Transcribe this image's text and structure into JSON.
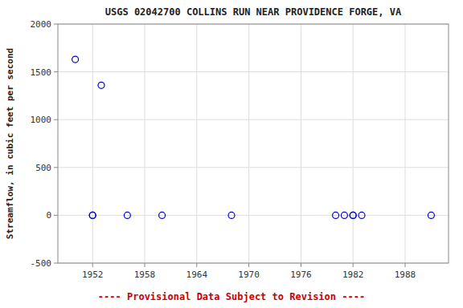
{
  "chart_data": {
    "type": "scatter",
    "title": "USGS 02042700 COLLINS RUN NEAR PROVIDENCE FORGE, VA",
    "ylabel": "Streamflow, in cubic feet per second",
    "x": [
      1950,
      1952,
      1952,
      1953,
      1956,
      1960,
      1968,
      1980,
      1981,
      1982,
      1982,
      1983,
      1991
    ],
    "values": [
      1630,
      0,
      0,
      1360,
      0,
      0,
      0,
      0,
      0,
      0,
      0,
      0,
      0
    ],
    "color": "#0000cc",
    "marker": "open-circle",
    "xlim": [
      1948,
      1993
    ],
    "ylim": [
      -500,
      2000
    ],
    "xticks": [
      1952,
      1958,
      1964,
      1970,
      1976,
      1982,
      1988
    ],
    "yticks": [
      -500,
      0,
      500,
      1000,
      1500,
      2000
    ],
    "grid": true,
    "annotations": [
      {
        "text": "---- Provisional Data Subject to Revision ----",
        "color": "#cc0000"
      }
    ]
  }
}
